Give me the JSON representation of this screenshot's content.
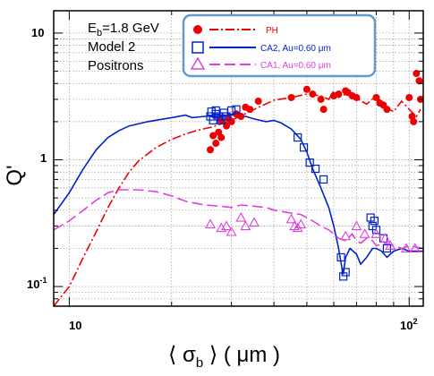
{
  "chart_data": {
    "type": "scatter",
    "xscale": "log",
    "yscale": "log",
    "xlim": [
      9,
      110
    ],
    "ylim": [
      0.07,
      15
    ],
    "grid": true,
    "xlabel": "⟨ σb ⟩ ( μm )",
    "ylabel": "Q'",
    "x_ticks": [
      "10",
      "10^2"
    ],
    "y_ticks": [
      "10^-1",
      "1",
      "10"
    ],
    "annotations": [
      "Eb=1.8 GeV",
      "Model 2",
      "Positrons"
    ],
    "legend_position": "top-center",
    "series": [
      {
        "name": "PH",
        "color": "#ee0000",
        "points": [
          [
            26,
            1.2
          ],
          [
            26.5,
            1.55
          ],
          [
            27,
            1.35
          ],
          [
            27.5,
            1.65
          ],
          [
            28,
            1.5
          ],
          [
            28,
            2.05
          ],
          [
            29,
            1.85
          ],
          [
            29.5,
            2.1
          ],
          [
            30,
            2.0
          ],
          [
            31,
            2.3
          ],
          [
            32,
            2.2
          ],
          [
            33,
            2.6
          ],
          [
            34,
            2.5
          ],
          [
            36,
            2.9
          ],
          [
            45,
            3.1
          ],
          [
            50,
            3.6
          ],
          [
            52,
            3.3
          ],
          [
            55,
            3.0
          ],
          [
            56,
            2.5
          ],
          [
            60,
            3.2
          ],
          [
            62,
            3.3
          ],
          [
            65,
            3.5
          ],
          [
            66,
            3.4
          ],
          [
            68,
            3.2
          ],
          [
            70,
            3.1
          ],
          [
            80,
            3.1
          ],
          [
            82,
            2.8
          ],
          [
            84,
            2.7
          ],
          [
            86,
            2.5
          ],
          [
            100,
            3.1
          ],
          [
            102,
            2.2
          ],
          [
            103,
            2.0
          ],
          [
            105,
            4.8
          ],
          [
            107,
            4.2
          ],
          [
            108,
            3.0
          ]
        ],
        "curve": [
          [
            9,
            0.07
          ],
          [
            10,
            0.1
          ],
          [
            11,
            0.17
          ],
          [
            12,
            0.27
          ],
          [
            13,
            0.42
          ],
          [
            14,
            0.6
          ],
          [
            15,
            0.8
          ],
          [
            16,
            0.98
          ],
          [
            18,
            1.25
          ],
          [
            20,
            1.45
          ],
          [
            22,
            1.6
          ],
          [
            24,
            1.72
          ],
          [
            26,
            1.8
          ],
          [
            28,
            1.92
          ],
          [
            30,
            2.05
          ],
          [
            35,
            2.5
          ],
          [
            40,
            2.95
          ],
          [
            45,
            3.1
          ],
          [
            50,
            3.3
          ],
          [
            55,
            3.2
          ],
          [
            58,
            3.0
          ],
          [
            60,
            3.5
          ],
          [
            62,
            3.1
          ],
          [
            65,
            3.3
          ],
          [
            70,
            3.05
          ],
          [
            75,
            2.75
          ],
          [
            80,
            3.2
          ],
          [
            85,
            2.6
          ],
          [
            90,
            2.4
          ],
          [
            95,
            2.9
          ],
          [
            100,
            2.5
          ],
          [
            105,
            2.2
          ],
          [
            108,
            2.5
          ]
        ]
      },
      {
        "name": "CA2, Au=0.60 μm",
        "color": "#0022cc",
        "points": [
          [
            26,
            2.2
          ],
          [
            26.2,
            2.4
          ],
          [
            26.5,
            2.05
          ],
          [
            27,
            2.3
          ],
          [
            27,
            2.45
          ],
          [
            27.5,
            2.2
          ],
          [
            28,
            2.05
          ],
          [
            28.5,
            2.35
          ],
          [
            29,
            2.2
          ],
          [
            30,
            2.45
          ],
          [
            31,
            2.5
          ],
          [
            47,
            1.5
          ],
          [
            49,
            1.25
          ],
          [
            51,
            0.95
          ],
          [
            53,
            0.85
          ],
          [
            56,
            0.7
          ],
          [
            63,
            0.17
          ],
          [
            64,
            0.12
          ],
          [
            65,
            0.13
          ],
          [
            77,
            0.35
          ],
          [
            78,
            0.3
          ],
          [
            79,
            0.33
          ],
          [
            80,
            0.28
          ],
          [
            84,
            0.24
          ],
          [
            86,
            0.2
          ]
        ],
        "curve": [
          [
            9,
            0.37
          ],
          [
            10,
            0.55
          ],
          [
            11,
            0.85
          ],
          [
            12,
            1.2
          ],
          [
            13,
            1.5
          ],
          [
            14,
            1.7
          ],
          [
            15,
            1.85
          ],
          [
            17,
            2.0
          ],
          [
            20,
            2.15
          ],
          [
            22,
            2.25
          ],
          [
            23,
            2.15
          ],
          [
            25,
            2.2
          ],
          [
            28,
            2.25
          ],
          [
            30,
            2.25
          ],
          [
            33,
            2.2
          ],
          [
            35,
            2.1
          ],
          [
            38,
            2.0
          ],
          [
            40,
            2.05
          ],
          [
            42,
            1.95
          ],
          [
            45,
            1.75
          ],
          [
            48,
            1.45
          ],
          [
            50,
            1.15
          ],
          [
            52,
            0.85
          ],
          [
            55,
            0.6
          ],
          [
            58,
            0.42
          ],
          [
            60,
            0.3
          ],
          [
            62,
            0.2
          ],
          [
            63,
            0.155
          ],
          [
            64,
            0.125
          ],
          [
            65,
            0.17
          ],
          [
            67,
            0.2
          ],
          [
            70,
            0.18
          ],
          [
            72,
            0.15
          ],
          [
            75,
            0.17
          ],
          [
            78,
            0.2
          ],
          [
            80,
            0.2
          ],
          [
            83,
            0.19
          ],
          [
            86,
            0.17
          ],
          [
            90,
            0.19
          ],
          [
            95,
            0.2
          ],
          [
            100,
            0.19
          ],
          [
            110,
            0.19
          ]
        ]
      },
      {
        "name": "CA1, Au=0.60 μm",
        "color": "#e040e0",
        "points": [
          [
            26,
            0.31
          ],
          [
            28,
            0.29
          ],
          [
            29,
            0.3
          ],
          [
            30,
            0.27
          ],
          [
            32,
            0.35
          ],
          [
            33,
            0.3
          ],
          [
            35,
            0.32
          ],
          [
            45,
            0.34
          ],
          [
            46,
            0.3
          ],
          [
            47,
            0.29
          ],
          [
            48,
            0.31
          ],
          [
            65,
            0.25
          ],
          [
            70,
            0.3
          ],
          [
            74,
            0.26
          ],
          [
            80,
            0.26
          ],
          [
            85,
            0.24
          ],
          [
            88,
            0.21
          ],
          [
            98,
            0.2
          ],
          [
            104,
            0.2
          ]
        ],
        "curve": [
          [
            9,
            0.28
          ],
          [
            10,
            0.33
          ],
          [
            11,
            0.4
          ],
          [
            12,
            0.48
          ],
          [
            13,
            0.55
          ],
          [
            14,
            0.58
          ],
          [
            16,
            0.58
          ],
          [
            18,
            0.56
          ],
          [
            20,
            0.52
          ],
          [
            22,
            0.47
          ],
          [
            25,
            0.44
          ],
          [
            28,
            0.43
          ],
          [
            30,
            0.42
          ],
          [
            32,
            0.44
          ],
          [
            35,
            0.43
          ],
          [
            38,
            0.42
          ],
          [
            40,
            0.4
          ],
          [
            45,
            0.38
          ],
          [
            48,
            0.37
          ],
          [
            50,
            0.35
          ],
          [
            52,
            0.33
          ],
          [
            55,
            0.3
          ],
          [
            58,
            0.28
          ],
          [
            60,
            0.26
          ],
          [
            62,
            0.24
          ],
          [
            65,
            0.23
          ],
          [
            68,
            0.26
          ],
          [
            70,
            0.23
          ],
          [
            72,
            0.22
          ],
          [
            75,
            0.24
          ],
          [
            78,
            0.23
          ],
          [
            80,
            0.21
          ],
          [
            85,
            0.22
          ],
          [
            90,
            0.21
          ],
          [
            95,
            0.2
          ],
          [
            100,
            0.21
          ],
          [
            110,
            0.2
          ]
        ]
      }
    ]
  },
  "text": {
    "y_title": "Q",
    "y_title_prime": "'",
    "x_title_left": "⟨ σ",
    "x_title_sub": "b",
    "x_title_right": " ⟩ ( μm )",
    "annot_e": "E",
    "annot_e_sub": "b",
    "annot_e_rest": "=1.8 GeV",
    "annot_model": "Model 2",
    "annot_particle": "Positrons",
    "tick_y_10": "10",
    "tick_y_1": "1",
    "tick_y_01": "10",
    "tick_y_01_exp": "-1",
    "tick_x_10": "10",
    "tick_x_100": "10",
    "tick_x_100_exp": "2"
  }
}
